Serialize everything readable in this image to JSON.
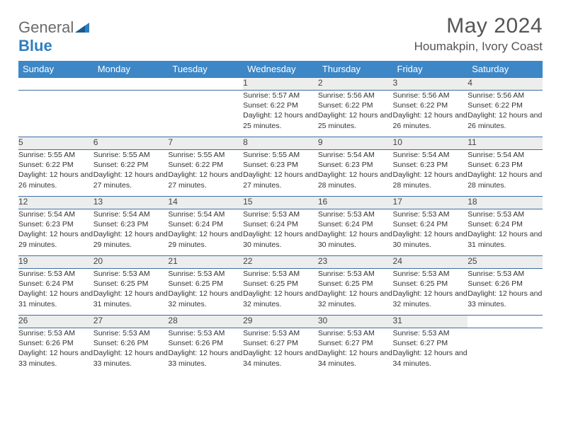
{
  "logo": {
    "text1": "General",
    "text2": "Blue"
  },
  "title": "May 2024",
  "location": "Houmakpin, Ivory Coast",
  "header_bg": "#3d87c7",
  "row_divider": "#3d6fa3",
  "daynum_bg": "#eceded",
  "days_of_week": [
    "Sunday",
    "Monday",
    "Tuesday",
    "Wednesday",
    "Thursday",
    "Friday",
    "Saturday"
  ],
  "weeks": [
    [
      null,
      null,
      null,
      {
        "n": "1",
        "sr": "5:57 AM",
        "ss": "6:22 PM",
        "dl": "12 hours and 25 minutes."
      },
      {
        "n": "2",
        "sr": "5:56 AM",
        "ss": "6:22 PM",
        "dl": "12 hours and 25 minutes."
      },
      {
        "n": "3",
        "sr": "5:56 AM",
        "ss": "6:22 PM",
        "dl": "12 hours and 26 minutes."
      },
      {
        "n": "4",
        "sr": "5:56 AM",
        "ss": "6:22 PM",
        "dl": "12 hours and 26 minutes."
      }
    ],
    [
      {
        "n": "5",
        "sr": "5:55 AM",
        "ss": "6:22 PM",
        "dl": "12 hours and 26 minutes."
      },
      {
        "n": "6",
        "sr": "5:55 AM",
        "ss": "6:22 PM",
        "dl": "12 hours and 27 minutes."
      },
      {
        "n": "7",
        "sr": "5:55 AM",
        "ss": "6:22 PM",
        "dl": "12 hours and 27 minutes."
      },
      {
        "n": "8",
        "sr": "5:55 AM",
        "ss": "6:23 PM",
        "dl": "12 hours and 27 minutes."
      },
      {
        "n": "9",
        "sr": "5:54 AM",
        "ss": "6:23 PM",
        "dl": "12 hours and 28 minutes."
      },
      {
        "n": "10",
        "sr": "5:54 AM",
        "ss": "6:23 PM",
        "dl": "12 hours and 28 minutes."
      },
      {
        "n": "11",
        "sr": "5:54 AM",
        "ss": "6:23 PM",
        "dl": "12 hours and 28 minutes."
      }
    ],
    [
      {
        "n": "12",
        "sr": "5:54 AM",
        "ss": "6:23 PM",
        "dl": "12 hours and 29 minutes."
      },
      {
        "n": "13",
        "sr": "5:54 AM",
        "ss": "6:23 PM",
        "dl": "12 hours and 29 minutes."
      },
      {
        "n": "14",
        "sr": "5:54 AM",
        "ss": "6:24 PM",
        "dl": "12 hours and 29 minutes."
      },
      {
        "n": "15",
        "sr": "5:53 AM",
        "ss": "6:24 PM",
        "dl": "12 hours and 30 minutes."
      },
      {
        "n": "16",
        "sr": "5:53 AM",
        "ss": "6:24 PM",
        "dl": "12 hours and 30 minutes."
      },
      {
        "n": "17",
        "sr": "5:53 AM",
        "ss": "6:24 PM",
        "dl": "12 hours and 30 minutes."
      },
      {
        "n": "18",
        "sr": "5:53 AM",
        "ss": "6:24 PM",
        "dl": "12 hours and 31 minutes."
      }
    ],
    [
      {
        "n": "19",
        "sr": "5:53 AM",
        "ss": "6:24 PM",
        "dl": "12 hours and 31 minutes."
      },
      {
        "n": "20",
        "sr": "5:53 AM",
        "ss": "6:25 PM",
        "dl": "12 hours and 31 minutes."
      },
      {
        "n": "21",
        "sr": "5:53 AM",
        "ss": "6:25 PM",
        "dl": "12 hours and 32 minutes."
      },
      {
        "n": "22",
        "sr": "5:53 AM",
        "ss": "6:25 PM",
        "dl": "12 hours and 32 minutes."
      },
      {
        "n": "23",
        "sr": "5:53 AM",
        "ss": "6:25 PM",
        "dl": "12 hours and 32 minutes."
      },
      {
        "n": "24",
        "sr": "5:53 AM",
        "ss": "6:25 PM",
        "dl": "12 hours and 32 minutes."
      },
      {
        "n": "25",
        "sr": "5:53 AM",
        "ss": "6:26 PM",
        "dl": "12 hours and 33 minutes."
      }
    ],
    [
      {
        "n": "26",
        "sr": "5:53 AM",
        "ss": "6:26 PM",
        "dl": "12 hours and 33 minutes."
      },
      {
        "n": "27",
        "sr": "5:53 AM",
        "ss": "6:26 PM",
        "dl": "12 hours and 33 minutes."
      },
      {
        "n": "28",
        "sr": "5:53 AM",
        "ss": "6:26 PM",
        "dl": "12 hours and 33 minutes."
      },
      {
        "n": "29",
        "sr": "5:53 AM",
        "ss": "6:27 PM",
        "dl": "12 hours and 34 minutes."
      },
      {
        "n": "30",
        "sr": "5:53 AM",
        "ss": "6:27 PM",
        "dl": "12 hours and 34 minutes."
      },
      {
        "n": "31",
        "sr": "5:53 AM",
        "ss": "6:27 PM",
        "dl": "12 hours and 34 minutes."
      },
      null
    ]
  ],
  "labels": {
    "sunrise": "Sunrise:",
    "sunset": "Sunset:",
    "daylight": "Daylight:"
  }
}
